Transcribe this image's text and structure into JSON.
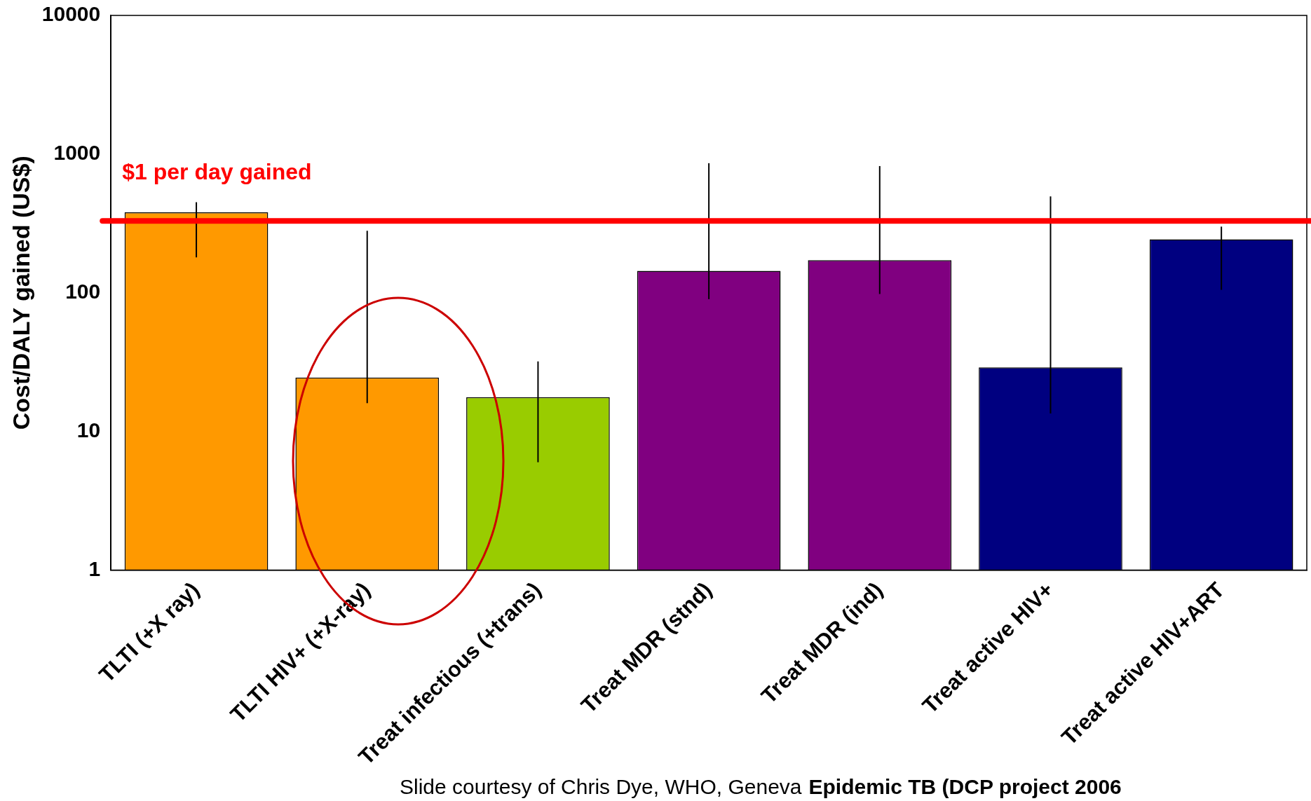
{
  "chart_data": {
    "type": "bar",
    "ylabel": "Cost/DALY gained (US$)",
    "categories": [
      "TLTI (+X ray)",
      "TLTI HIV+ (+X-ray)",
      "Treat infectious (+trans)",
      "Treat MDR (stnd)",
      "Treat MDR (ind)",
      "Treat active HIV+",
      "Treat active HIV+ART"
    ],
    "values": [
      380,
      24.5,
      17.7,
      144,
      172,
      29,
      243
    ],
    "colors": [
      "#ff9900",
      "#ff9900",
      "#99cc00",
      "#800080",
      "#800080",
      "#000080",
      "#000080"
    ],
    "errors": [
      [
        180,
        450
      ],
      [
        16,
        280
      ],
      [
        6,
        32
      ],
      [
        90,
        860
      ],
      [
        98,
        820
      ],
      [
        13.5,
        495
      ],
      [
        105,
        300
      ]
    ],
    "log": "y",
    "ylim": [
      1,
      10000
    ],
    "yticks": [
      1,
      10,
      100,
      1000,
      10000
    ],
    "grid": false,
    "legend": false,
    "ref_lines": [
      {
        "axis": "y",
        "value": 330,
        "label": "$1 per day gained",
        "color": "#ff0000"
      }
    ],
    "annotations": [
      "Slide courtesy of Chris Dye, WHO, Geneva",
      "Epidemic TB (DCP project 2006"
    ]
  }
}
